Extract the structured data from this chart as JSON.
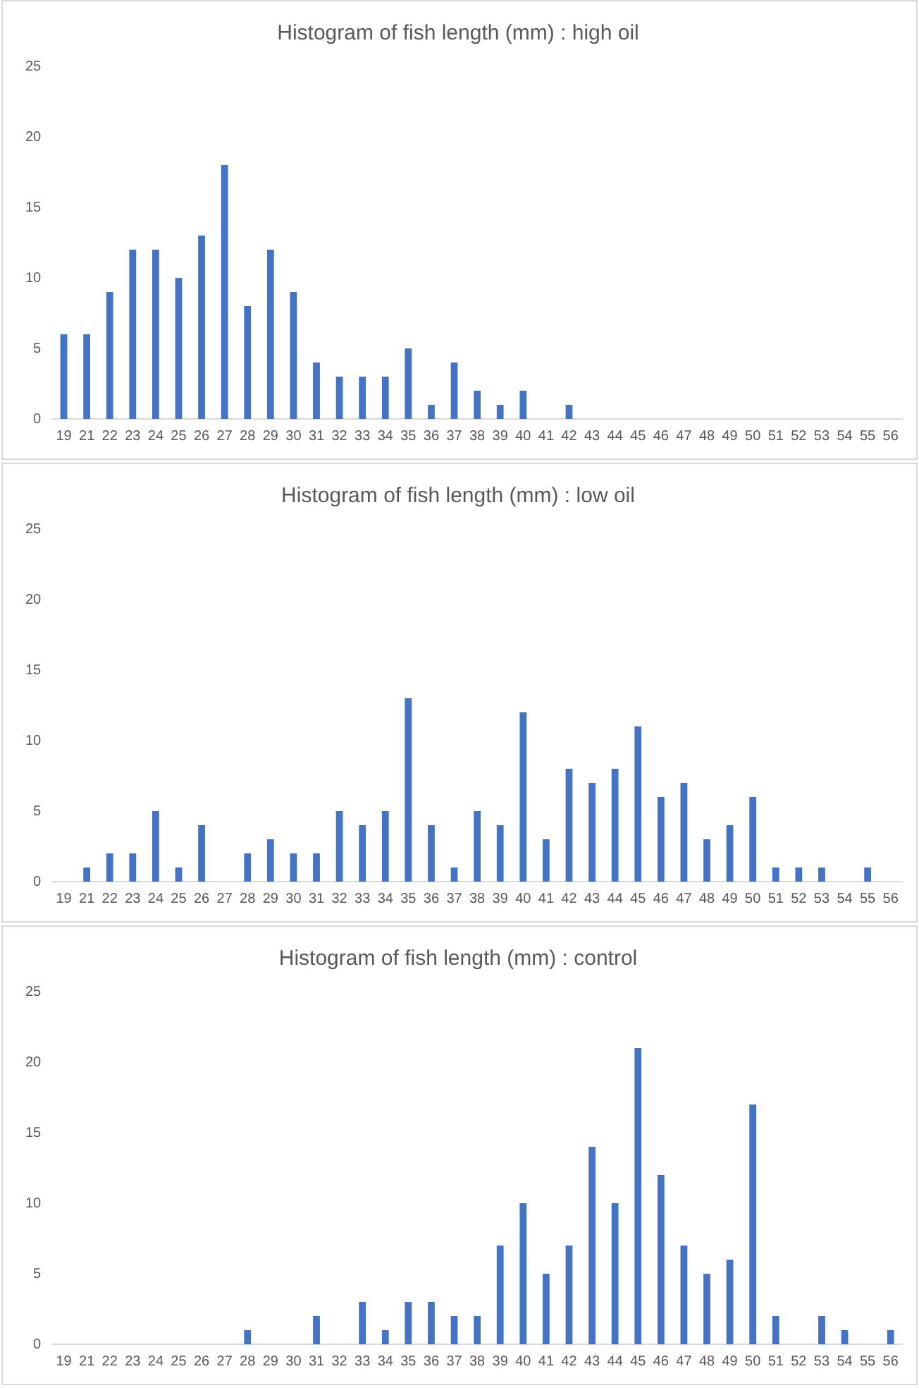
{
  "chart_data": [
    {
      "type": "bar",
      "title": "Histogram of fish length (mm) : high oil",
      "categories": [
        "19",
        "21",
        "22",
        "23",
        "24",
        "25",
        "26",
        "27",
        "28",
        "29",
        "30",
        "31",
        "32",
        "33",
        "34",
        "35",
        "36",
        "37",
        "38",
        "39",
        "40",
        "41",
        "42",
        "43",
        "44",
        "45",
        "46",
        "47",
        "48",
        "49",
        "50",
        "51",
        "52",
        "53",
        "54",
        "55",
        "56"
      ],
      "values": [
        6,
        6,
        9,
        12,
        12,
        10,
        13,
        18,
        8,
        12,
        9,
        4,
        3,
        3,
        3,
        5,
        1,
        4,
        2,
        1,
        2,
        0,
        1,
        0,
        0,
        0,
        0,
        0,
        0,
        0,
        0,
        0,
        0,
        0,
        0,
        0,
        0
      ],
      "color": "#4472c4",
      "ylim": [
        0,
        25
      ],
      "yticks": [
        0,
        5,
        10,
        15,
        20,
        25
      ],
      "grid": false
    },
    {
      "type": "bar",
      "title": "Histogram of fish length (mm) : low oil",
      "categories": [
        "19",
        "21",
        "22",
        "23",
        "24",
        "25",
        "26",
        "27",
        "28",
        "29",
        "30",
        "31",
        "32",
        "33",
        "34",
        "35",
        "36",
        "37",
        "38",
        "39",
        "40",
        "41",
        "42",
        "43",
        "44",
        "45",
        "46",
        "47",
        "48",
        "49",
        "50",
        "51",
        "52",
        "53",
        "54",
        "55",
        "56"
      ],
      "values": [
        0,
        1,
        2,
        2,
        5,
        1,
        4,
        0,
        2,
        3,
        2,
        2,
        5,
        4,
        5,
        13,
        4,
        1,
        5,
        4,
        12,
        3,
        8,
        7,
        8,
        11,
        6,
        7,
        3,
        4,
        6,
        1,
        1,
        1,
        0,
        1,
        0
      ],
      "color": "#4472c4",
      "ylim": [
        0,
        25
      ],
      "yticks": [
        0,
        5,
        10,
        15,
        20,
        25
      ],
      "grid": false
    },
    {
      "type": "bar",
      "title": "Histogram of fish length (mm) : control",
      "categories": [
        "19",
        "21",
        "22",
        "23",
        "24",
        "25",
        "26",
        "27",
        "28",
        "29",
        "30",
        "31",
        "32",
        "33",
        "34",
        "35",
        "36",
        "37",
        "38",
        "39",
        "40",
        "41",
        "42",
        "43",
        "44",
        "45",
        "46",
        "47",
        "48",
        "49",
        "50",
        "51",
        "52",
        "53",
        "54",
        "55",
        "56"
      ],
      "values": [
        0,
        0,
        0,
        0,
        0,
        0,
        0,
        0,
        1,
        0,
        0,
        2,
        0,
        3,
        1,
        3,
        3,
        2,
        2,
        7,
        10,
        5,
        7,
        14,
        10,
        21,
        12,
        7,
        5,
        6,
        17,
        2,
        0,
        2,
        1,
        0,
        1
      ],
      "color": "#4472c4",
      "ylim": [
        0,
        25
      ],
      "yticks": [
        0,
        5,
        10,
        15,
        20,
        25
      ],
      "grid": false
    }
  ]
}
